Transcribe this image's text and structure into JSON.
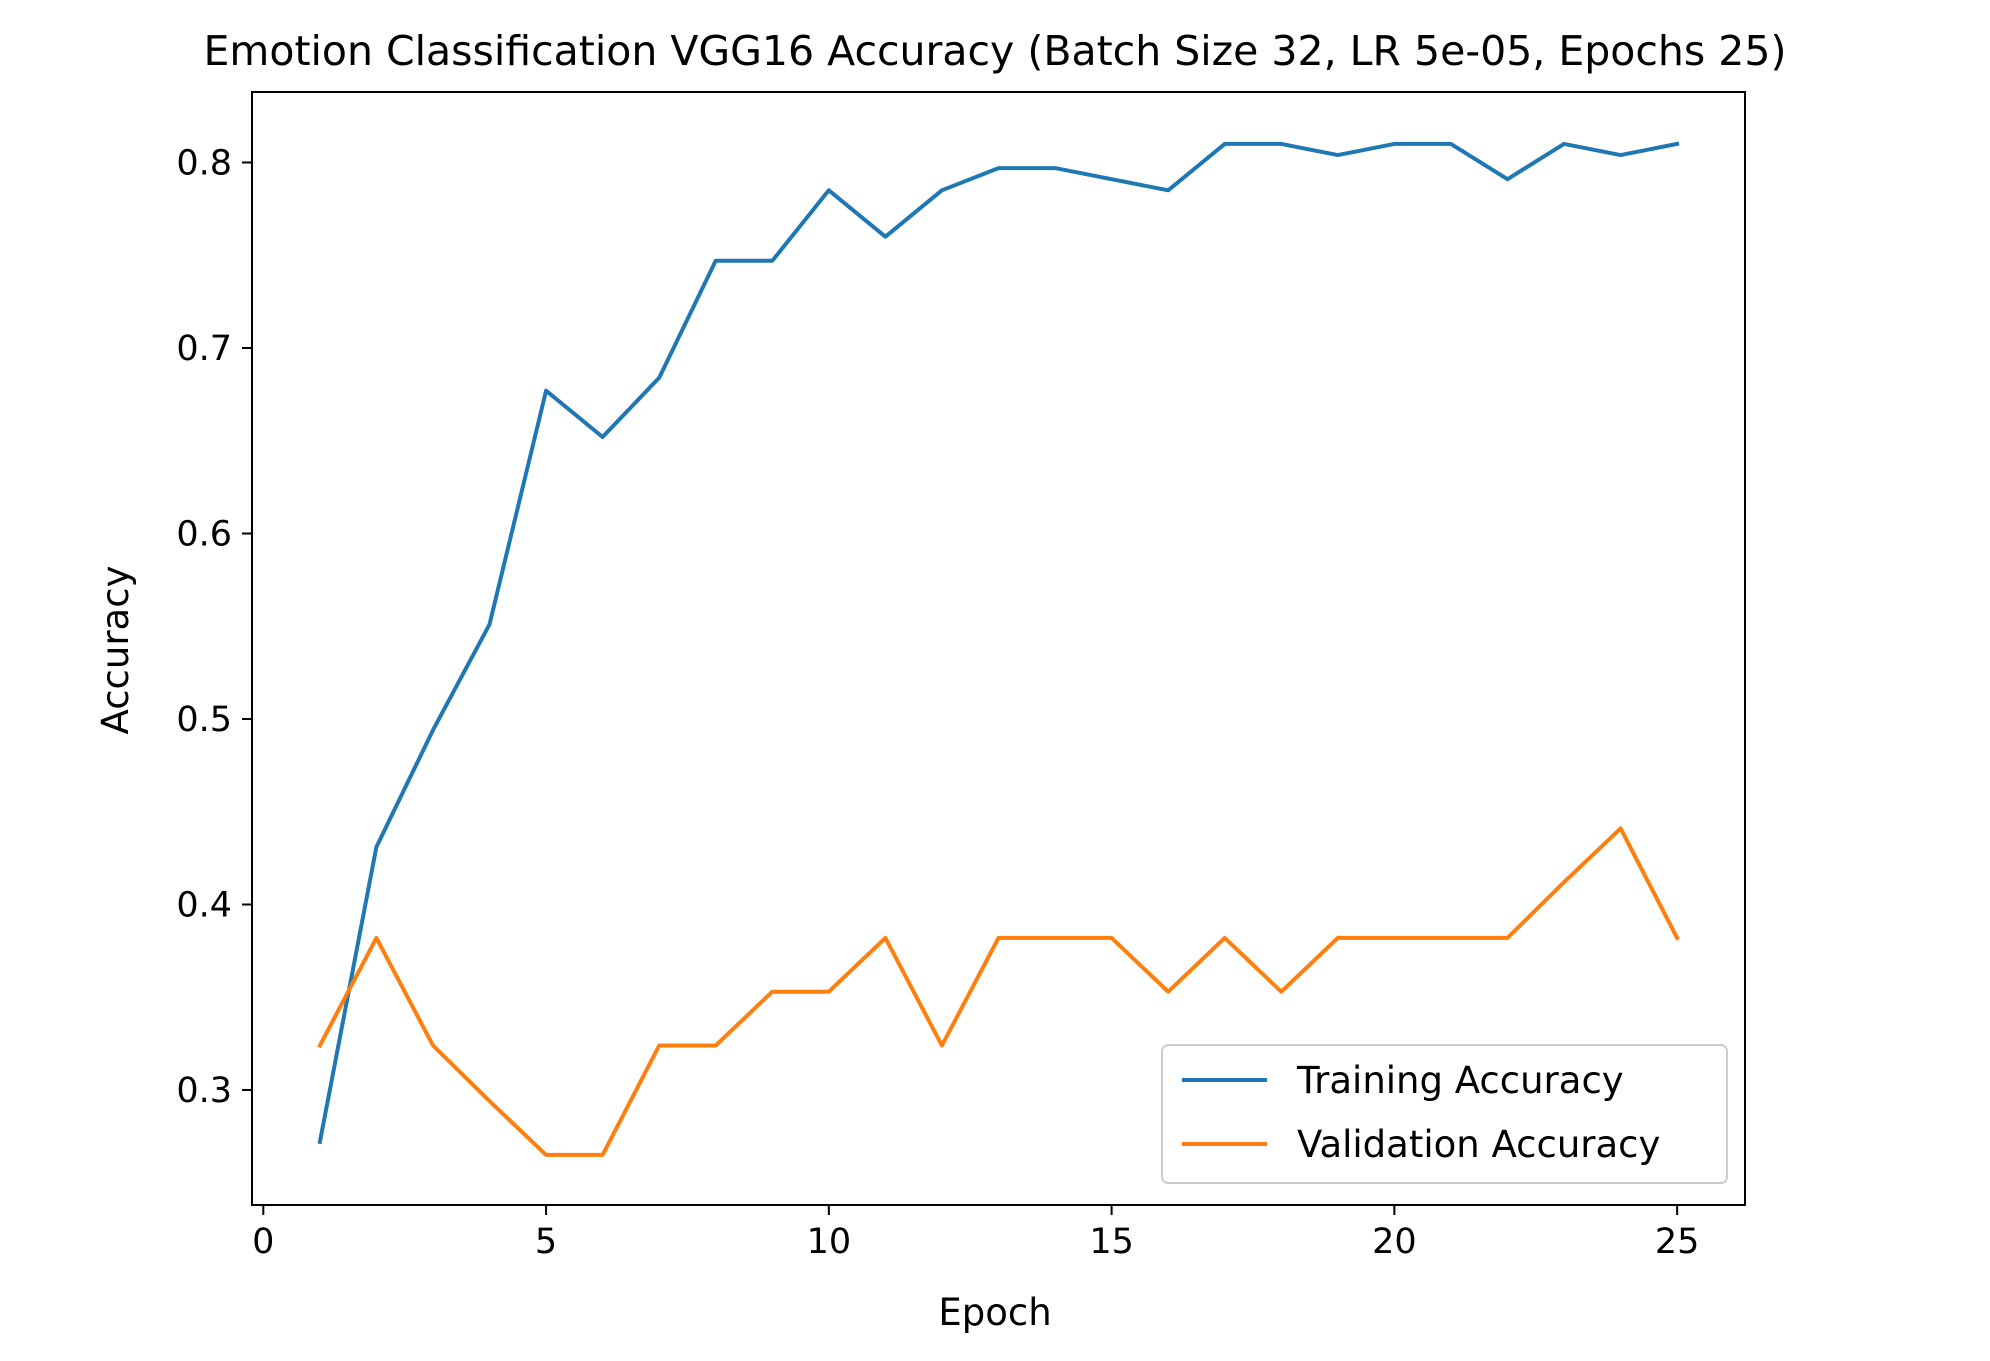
{
  "chart_data": {
    "type": "line",
    "title": "Emotion Classification VGG16 Accuracy (Batch Size 32, LR 5e-05, Epochs 25)",
    "xlabel": "Epoch",
    "ylabel": "Accuracy",
    "xlim": [
      -0.2,
      26.2
    ],
    "ylim": [
      0.238,
      0.838
    ],
    "xticks": [
      0,
      5,
      10,
      15,
      20,
      25
    ],
    "xtick_labels": [
      "0",
      "5",
      "10",
      "15",
      "20",
      "25"
    ],
    "yticks": [
      0.3,
      0.4,
      0.5,
      0.6,
      0.7,
      0.8
    ],
    "ytick_labels": [
      "0.3",
      "0.4",
      "0.5",
      "0.6",
      "0.7",
      "0.8"
    ],
    "grid": false,
    "legend_position": "lower-right",
    "x": [
      1,
      2,
      3,
      4,
      5,
      6,
      7,
      8,
      9,
      10,
      11,
      12,
      13,
      14,
      15,
      16,
      17,
      18,
      19,
      20,
      21,
      22,
      23,
      24,
      25
    ],
    "series": [
      {
        "name": "Training Accuracy",
        "color": "#1f77b4",
        "values": [
          0.272,
          0.431,
          0.494,
          0.551,
          0.677,
          0.652,
          0.684,
          0.747,
          0.747,
          0.785,
          0.76,
          0.785,
          0.797,
          0.797,
          0.791,
          0.785,
          0.81,
          0.81,
          0.804,
          0.81,
          0.81,
          0.791,
          0.81,
          0.804,
          0.81
        ]
      },
      {
        "name": "Validation Accuracy",
        "color": "#ff7f0e",
        "values": [
          0.324,
          0.382,
          0.324,
          0.294,
          0.265,
          0.265,
          0.324,
          0.324,
          0.353,
          0.353,
          0.382,
          0.324,
          0.382,
          0.382,
          0.382,
          0.353,
          0.382,
          0.353,
          0.382,
          0.382,
          0.382,
          0.382,
          0.412,
          0.441,
          0.382
        ]
      }
    ]
  }
}
